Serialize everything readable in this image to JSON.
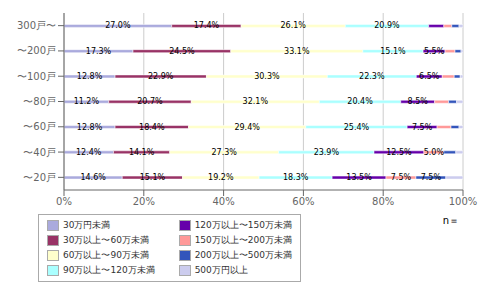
{
  "chart_data": {
    "type": "bar",
    "orientation": "horizontal",
    "stacked": true,
    "grid": true,
    "legend": "bottom",
    "data_labels": true,
    "categories": [
      "〜20戸",
      "〜40戸",
      "〜60戸",
      "〜80戸",
      "〜100戸",
      "〜200戸",
      "300戸〜"
    ],
    "series": [
      {
        "name": "30万円未満",
        "color": "#aaaadd",
        "values": [
          14.6,
          12.4,
          12.8,
          11.2,
          12.8,
          17.3,
          27.0
        ],
        "value_labels": [
          "14.6%",
          "12.4%",
          "12.8%",
          "11.2%",
          "12.8%",
          "17.3%",
          "27.0%"
        ]
      },
      {
        "name": "30万以上〜60万未満",
        "color": "#993366",
        "values": [
          15.1,
          14.1,
          18.4,
          20.7,
          22.9,
          24.5,
          17.4
        ],
        "value_labels": [
          "15.1%",
          "14.1%",
          "18.4%",
          "20.7%",
          "22.9%",
          "24.5%",
          "17.4%"
        ]
      },
      {
        "name": "60万以上〜90万未満",
        "color": "#ffffcc",
        "values": [
          19.2,
          27.3,
          29.4,
          32.1,
          30.3,
          33.1,
          26.1
        ],
        "value_labels": [
          "19.2%",
          "27.3%",
          "29.4%",
          "32.1%",
          "30.3%",
          "33.1%",
          "26.1%"
        ]
      },
      {
        "name": "90万以上〜120万未満",
        "color": "#aaffff",
        "values": [
          18.3,
          23.9,
          25.4,
          20.4,
          22.3,
          15.1,
          20.9
        ],
        "value_labels": [
          "18.3%",
          "23.9%",
          "25.4%",
          "20.4%",
          "22.3%",
          "15.1%",
          "20.9%"
        ]
      },
      {
        "name": "120万以上〜150万未満",
        "color": "#6600aa",
        "values": [
          13.5,
          12.5,
          7.5,
          8.5,
          6.5,
          5.5,
          3.8
        ],
        "value_labels": [
          "13.5%",
          "12.5%",
          "7.5%",
          "8.5%",
          "6.5%",
          "5.5%",
          null
        ]
      },
      {
        "name": "150万以上〜200万未満",
        "color": "#ff9999",
        "values": [
          7.5,
          5.0,
          3.5,
          3.5,
          3.0,
          2.5,
          2.0
        ],
        "value_labels": [
          "7.5%",
          "5.0%",
          null,
          null,
          null,
          null,
          null
        ]
      },
      {
        "name": "200万以上〜500万未満",
        "color": "#3355bb",
        "values": [
          7.5,
          3.0,
          2.0,
          2.0,
          1.5,
          1.5,
          1.8
        ],
        "value_labels": [
          "7.5%",
          null,
          null,
          null,
          null,
          null,
          null
        ]
      },
      {
        "name": "500万円以上",
        "color": "#ccccee",
        "values": [
          4.3,
          1.8,
          1.0,
          1.6,
          0.7,
          0.5,
          1.0
        ],
        "value_labels": [
          null,
          null,
          null,
          null,
          null,
          null,
          null
        ]
      }
    ],
    "xlim": [
      0,
      100
    ],
    "xticks": [
      {
        "value": 0,
        "label": "0%"
      },
      {
        "value": 20,
        "label": "20%"
      },
      {
        "value": 40,
        "label": "40%"
      },
      {
        "value": 60,
        "label": "60%"
      },
      {
        "value": 80,
        "label": "80%"
      },
      {
        "value": 100,
        "label": "100%"
      }
    ],
    "annotations": [
      "n＝"
    ]
  }
}
